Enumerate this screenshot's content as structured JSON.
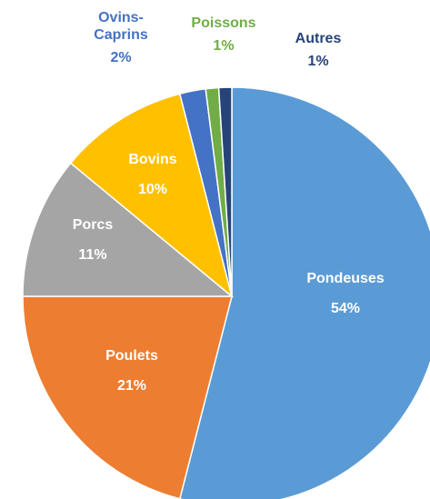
{
  "chart_data": {
    "type": "pie",
    "categories": [
      "Pondeuses",
      "Poulets",
      "Porcs",
      "Bovins",
      "Ovins-Caprins",
      "Poissons",
      "Autres"
    ],
    "values": [
      54,
      21,
      11,
      10,
      2,
      1,
      1
    ],
    "value_labels": [
      "54%",
      "21%",
      "11%",
      "10%",
      "2%",
      "1%",
      "1%"
    ],
    "colors": [
      "#5b9bd5",
      "#ed7d31",
      "#a5a5a5",
      "#ffc000",
      "#4472c4",
      "#70ad47",
      "#264478"
    ]
  }
}
